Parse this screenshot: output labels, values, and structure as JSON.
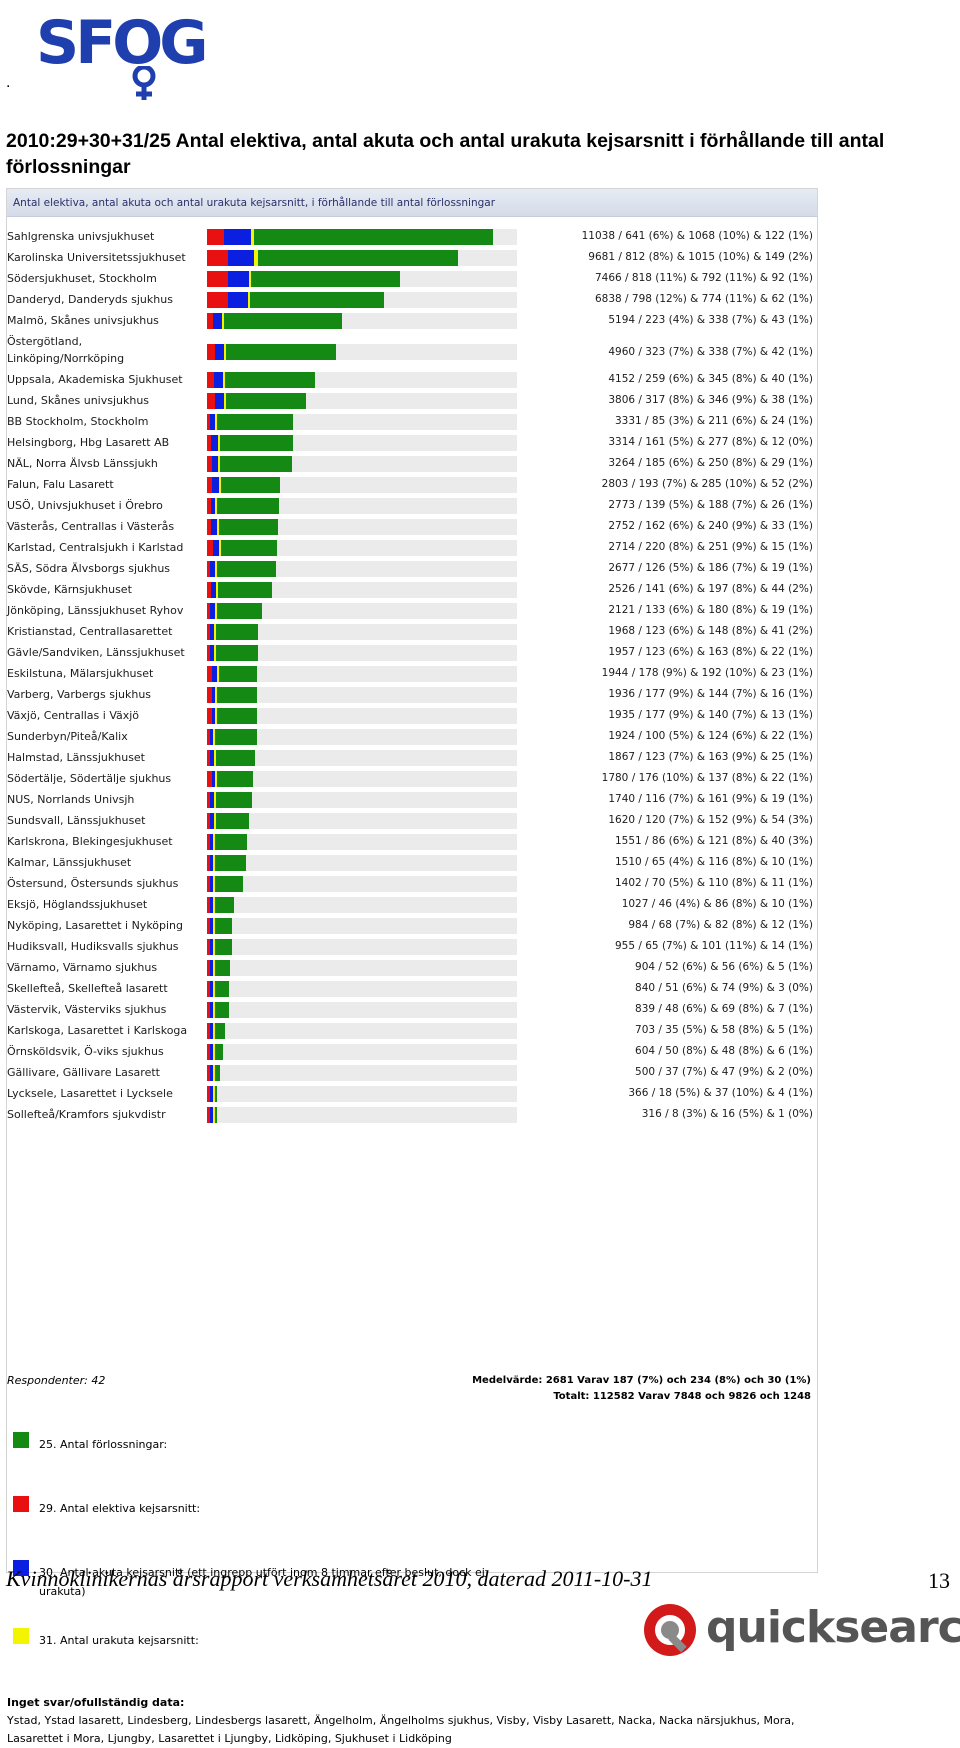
{
  "header": {
    "logo_text": "SFOG",
    "dot": ".",
    "title": "2010:29+30+31/25 Antal elektiva, antal akuta och antal urakuta kejsarsnitt i förhållande till antal förlossningar"
  },
  "colors": {
    "births": "#148a14",
    "elective": "#e81010",
    "acute": "#0a1fe0",
    "urgent": "#f4f400"
  },
  "chart_data": {
    "type": "bar",
    "title": "Antal elektiva, antal akuta och antal urakuta kejsarsnitt, i förhållande till antal förlossningar",
    "xlim": [
      0,
      11038
    ],
    "series": [
      {
        "name": "25. Antal förlossningar:",
        "key": "births"
      },
      {
        "name": "29. Antal elektiva kejsarsnitt:",
        "key": "elective"
      },
      {
        "name": "30. Antal akuta kejsarsnitt (ett ingrepp utfört inom 8 timmar efter beslut, dock ej urakuta)",
        "key": "acute"
      },
      {
        "name": "31. Antal urakuta kejsarsnitt:",
        "key": "urgent"
      }
    ],
    "rows": [
      {
        "label": "Sahlgrenska univsjukhuset",
        "births": 11038,
        "elective": 641,
        "acute": 1068,
        "urgent": 122,
        "value_text": "11038 / 641 (6%) & 1068 (10%) & 122 (1%)"
      },
      {
        "label": "Karolinska Universitetssjukhuset",
        "births": 9681,
        "elective": 812,
        "acute": 1015,
        "urgent": 149,
        "value_text": "9681 / 812 (8%) & 1015 (10%) & 149 (2%)"
      },
      {
        "label": "Södersjukhuset, Stockholm",
        "births": 7466,
        "elective": 818,
        "acute": 792,
        "urgent": 92,
        "value_text": "7466 / 818 (11%) & 792 (11%) & 92 (1%)"
      },
      {
        "label": "Danderyd, Danderyds sjukhus",
        "births": 6838,
        "elective": 798,
        "acute": 774,
        "urgent": 62,
        "value_text": "6838 / 798 (12%) & 774 (11%) & 62 (1%)"
      },
      {
        "label": "Malmö, Skånes univsjukhus",
        "births": 5194,
        "elective": 223,
        "acute": 338,
        "urgent": 43,
        "value_text": "5194 / 223 (4%) & 338 (7%) & 43 (1%)"
      },
      {
        "label": "Östergötland,",
        "label2": "Linköping/Norrköping",
        "births": 4960,
        "elective": 323,
        "acute": 338,
        "urgent": 42,
        "value_text": "4960 / 323 (7%) & 338 (7%) & 42 (1%)"
      },
      {
        "label": "Uppsala, Akademiska Sjukhuset",
        "births": 4152,
        "elective": 259,
        "acute": 345,
        "urgent": 40,
        "value_text": "4152 / 259 (6%) & 345 (8%) & 40 (1%)"
      },
      {
        "label": "Lund, Skånes univsjukhus",
        "births": 3806,
        "elective": 317,
        "acute": 346,
        "urgent": 38,
        "value_text": "3806 / 317 (8%) & 346 (9%) & 38 (1%)"
      },
      {
        "label": "BB Stockholm, Stockholm",
        "births": 3331,
        "elective": 85,
        "acute": 211,
        "urgent": 24,
        "value_text": "3331 / 85 (3%) & 211 (6%) & 24 (1%)"
      },
      {
        "label": "Helsingborg, Hbg Lasarett AB",
        "births": 3314,
        "elective": 161,
        "acute": 277,
        "urgent": 12,
        "value_text": "3314 / 161 (5%) & 277 (8%) & 12 (0%)"
      },
      {
        "label": "NÄL, Norra Älvsb Länssjukh",
        "births": 3264,
        "elective": 185,
        "acute": 250,
        "urgent": 29,
        "value_text": "3264 / 185 (6%) & 250 (8%) & 29 (1%)"
      },
      {
        "label": "Falun, Falu Lasarett",
        "births": 2803,
        "elective": 193,
        "acute": 285,
        "urgent": 52,
        "value_text": "2803 / 193 (7%) & 285 (10%) & 52 (2%)"
      },
      {
        "label": "USÖ, Univsjukhuset i Örebro",
        "births": 2773,
        "elective": 139,
        "acute": 188,
        "urgent": 26,
        "value_text": "2773 / 139 (5%) & 188 (7%) & 26 (1%)"
      },
      {
        "label": "Västerås, Centrallas i Västerås",
        "births": 2752,
        "elective": 162,
        "acute": 240,
        "urgent": 33,
        "value_text": "2752 / 162 (6%) & 240 (9%) & 33 (1%)"
      },
      {
        "label": "Karlstad, Centralsjukh i Karlstad",
        "births": 2714,
        "elective": 220,
        "acute": 251,
        "urgent": 15,
        "value_text": "2714 / 220 (8%) & 251 (9%) & 15 (1%)"
      },
      {
        "label": "SÄS, Södra Älvsborgs sjukhus",
        "births": 2677,
        "elective": 126,
        "acute": 186,
        "urgent": 19,
        "value_text": "2677 / 126 (5%) & 186 (7%) & 19 (1%)"
      },
      {
        "label": "Skövde, Kärnsjukhuset",
        "births": 2526,
        "elective": 141,
        "acute": 197,
        "urgent": 44,
        "value_text": "2526 / 141 (6%) & 197 (8%) & 44 (2%)"
      },
      {
        "label": "Jönköping, Länssjukhuset Ryhov",
        "births": 2121,
        "elective": 133,
        "acute": 180,
        "urgent": 19,
        "value_text": "2121 / 133 (6%) & 180 (8%) & 19 (1%)"
      },
      {
        "label": "Kristianstad, Centrallasarettet",
        "births": 1968,
        "elective": 123,
        "acute": 148,
        "urgent": 41,
        "value_text": "1968 / 123 (6%) & 148 (8%) & 41 (2%)"
      },
      {
        "label": "Gävle/Sandviken, Länssjukhuset",
        "births": 1957,
        "elective": 123,
        "acute": 163,
        "urgent": 22,
        "value_text": "1957 / 123 (6%) & 163 (8%) & 22 (1%)"
      },
      {
        "label": "Eskilstuna, Mälarsjukhuset",
        "births": 1944,
        "elective": 178,
        "acute": 192,
        "urgent": 23,
        "value_text": "1944 / 178 (9%) & 192 (10%) & 23 (1%)"
      },
      {
        "label": "Varberg, Varbergs sjukhus",
        "births": 1936,
        "elective": 177,
        "acute": 144,
        "urgent": 16,
        "value_text": "1936 / 177 (9%) & 144 (7%) & 16 (1%)"
      },
      {
        "label": "Växjö, Centrallas i Växjö",
        "births": 1935,
        "elective": 177,
        "acute": 140,
        "urgent": 13,
        "value_text": "1935 / 177 (9%) & 140 (7%) & 13 (1%)"
      },
      {
        "label": "Sunderbyn/Piteå/Kalix",
        "births": 1924,
        "elective": 100,
        "acute": 124,
        "urgent": 22,
        "value_text": "1924 / 100 (5%) & 124 (6%) & 22 (1%)"
      },
      {
        "label": "Halmstad, Länssjukhuset",
        "births": 1867,
        "elective": 123,
        "acute": 163,
        "urgent": 25,
        "value_text": "1867 / 123 (7%) & 163 (9%) & 25 (1%)"
      },
      {
        "label": "Södertälje, Södertälje sjukhus",
        "births": 1780,
        "elective": 176,
        "acute": 137,
        "urgent": 22,
        "value_text": "1780 / 176 (10%) & 137 (8%) & 22 (1%)"
      },
      {
        "label": "NUS, Norrlands Univsjh",
        "births": 1740,
        "elective": 116,
        "acute": 161,
        "urgent": 19,
        "value_text": "1740 / 116 (7%) & 161 (9%) & 19 (1%)"
      },
      {
        "label": "Sundsvall, Länssjukhuset",
        "births": 1620,
        "elective": 120,
        "acute": 152,
        "urgent": 54,
        "value_text": "1620 / 120 (7%) & 152 (9%) & 54 (3%)"
      },
      {
        "label": "Karlskrona, Blekingesjukhuset",
        "births": 1551,
        "elective": 86,
        "acute": 121,
        "urgent": 40,
        "value_text": "1551 / 86 (6%) & 121 (8%) & 40 (3%)"
      },
      {
        "label": "Kalmar, Länssjukhuset",
        "births": 1510,
        "elective": 65,
        "acute": 116,
        "urgent": 10,
        "value_text": "1510 / 65 (4%) & 116 (8%) & 10 (1%)"
      },
      {
        "label": "Östersund, Östersunds sjukhus",
        "births": 1402,
        "elective": 70,
        "acute": 110,
        "urgent": 11,
        "value_text": "1402 / 70 (5%) & 110 (8%) & 11 (1%)"
      },
      {
        "label": "Eksjö, Höglandssjukhuset",
        "births": 1027,
        "elective": 46,
        "acute": 86,
        "urgent": 10,
        "value_text": "1027 / 46 (4%) & 86 (8%) & 10 (1%)"
      },
      {
        "label": "Nyköping, Lasarettet i Nyköping",
        "births": 984,
        "elective": 68,
        "acute": 82,
        "urgent": 12,
        "value_text": "984 / 68 (7%) & 82 (8%) & 12 (1%)"
      },
      {
        "label": "Hudiksvall, Hudiksvalls sjukhus",
        "births": 955,
        "elective": 65,
        "acute": 101,
        "urgent": 14,
        "value_text": "955 / 65 (7%) & 101 (11%) & 14 (1%)"
      },
      {
        "label": "Värnamo, Värnamo sjukhus",
        "births": 904,
        "elective": 52,
        "acute": 56,
        "urgent": 5,
        "value_text": "904 / 52 (6%) & 56 (6%) & 5 (1%)"
      },
      {
        "label": "Skellefteå, Skellefteå lasarett",
        "births": 840,
        "elective": 51,
        "acute": 74,
        "urgent": 3,
        "value_text": "840 / 51 (6%) & 74 (9%) & 3 (0%)"
      },
      {
        "label": "Västervik, Västerviks sjukhus",
        "births": 839,
        "elective": 48,
        "acute": 69,
        "urgent": 7,
        "value_text": "839 / 48 (6%) & 69 (8%) & 7 (1%)"
      },
      {
        "label": "Karlskoga, Lasarettet i Karlskoga",
        "births": 703,
        "elective": 35,
        "acute": 58,
        "urgent": 5,
        "value_text": "703 / 35 (5%) & 58 (8%) & 5 (1%)"
      },
      {
        "label": "Örnsköldsvik, Ö-viks sjukhus",
        "births": 604,
        "elective": 50,
        "acute": 48,
        "urgent": 6,
        "value_text": "604 / 50 (8%) & 48 (8%) & 6 (1%)"
      },
      {
        "label": "Gällivare, Gällivare Lasarett",
        "births": 500,
        "elective": 37,
        "acute": 47,
        "urgent": 2,
        "value_text": "500 / 37 (7%) & 47 (9%) & 2 (0%)"
      },
      {
        "label": "Lycksele, Lasarettet i Lycksele",
        "births": 366,
        "elective": 18,
        "acute": 37,
        "urgent": 4,
        "value_text": "366 / 18 (5%) & 37 (10%) & 4 (1%)"
      },
      {
        "label": "Sollefteå/Kramfors sjukvdistr",
        "births": 316,
        "elective": 8,
        "acute": 16,
        "urgent": 1,
        "value_text": "316 / 8 (3%) & 16 (5%) & 1 (0%)"
      }
    ],
    "respondents": "Respondenter: 42",
    "average": "Medelvärde: 2681 Varav 187 (7%) och 234 (8%) och 30 (1%)",
    "total": "Totalt: 112582 Varav 7848 och 9826 och 1248"
  },
  "no_answer": {
    "heading": "Inget svar/ofullständig data:",
    "text": "Ystad, Ystad lasarett, Lindesberg, Lindesbergs lasarett, Ängelholm, Ängelholms sjukhus, Visby, Visby Lasarett, Nacka, Nacka närsjukhus, Mora, Lasarettet i Mora, Ljungby, Lasarettet i Ljungby, Lidköping, Sjukhuset i Lidköping"
  },
  "footer": {
    "text": "Kvinnoklinikernas årsrapport verksamhetsåret 2010, daterad 2011-10-31",
    "page": "13",
    "brand": "quicksearch"
  }
}
